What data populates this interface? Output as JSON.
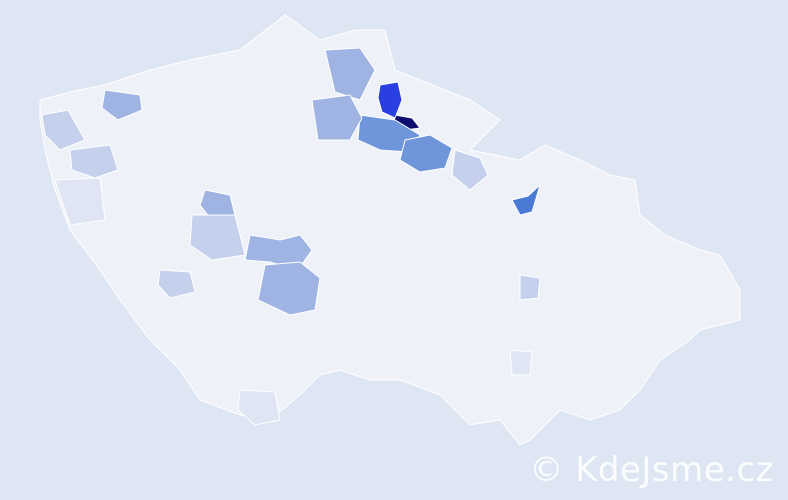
{
  "map": {
    "colors": {
      "background": "#dde6f2",
      "base": "#eef1f8",
      "border": "#ffffff",
      "level_1": "#dfe5f2",
      "level_2": "#c4d0ec",
      "level_3": "#9fb4e3",
      "level_4": "#6f95da",
      "level_5": "#4a7ad6",
      "level_6": "#2a3fe0",
      "level_7": "#0b0d70"
    },
    "highlighted_regions": [
      {
        "level": 7
      },
      {
        "level": 6
      },
      {
        "level": 5
      },
      {
        "level": 4
      },
      {
        "level": 4
      },
      {
        "level": 3
      },
      {
        "level": 3
      },
      {
        "level": 3
      },
      {
        "level": 3
      },
      {
        "level": 3
      },
      {
        "level": 3
      },
      {
        "level": 2
      },
      {
        "level": 2
      },
      {
        "level": 2
      },
      {
        "level": 2
      },
      {
        "level": 2
      },
      {
        "level": 2
      },
      {
        "level": 1
      },
      {
        "level": 1
      },
      {
        "level": 1
      }
    ]
  },
  "watermark": "© KdeJsme.cz"
}
